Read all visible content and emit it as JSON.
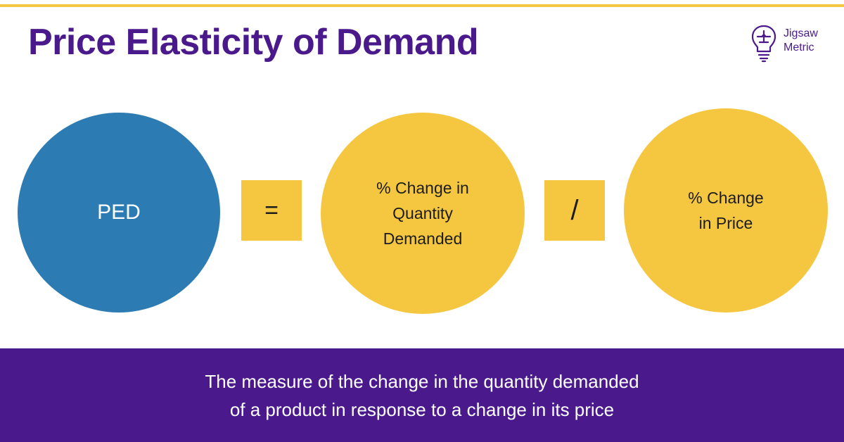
{
  "title": "Price Elasticity of Demand",
  "logo": {
    "icon": "lightbulb-puzzle-icon",
    "line1": "Jigsaw",
    "line2": "Metric"
  },
  "formula": {
    "ped_label": "PED",
    "equals_symbol": "=",
    "numerator_lines": [
      "% Change in",
      "Quantity",
      "Demanded"
    ],
    "divide_symbol": "/",
    "denominator_lines": [
      "% Change",
      "in Price"
    ]
  },
  "footer": {
    "lines": [
      "The measure of the change in the quantity demanded",
      "of a product in response to a change in its price"
    ]
  },
  "colors": {
    "accent_purple": "#4a1a8c",
    "ped_blue": "#2c7bb3",
    "yellow": "#f5c741",
    "top_bar": "#f4c842"
  }
}
